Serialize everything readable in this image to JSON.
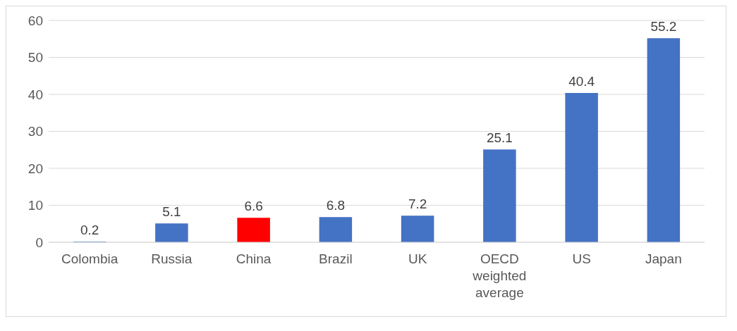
{
  "chart_data": {
    "type": "bar",
    "categories": [
      "Colombia",
      "Russia",
      "China",
      "Brazil",
      "UK",
      "OECD weighted average",
      "US",
      "Japan"
    ],
    "values": [
      0.2,
      5.1,
      6.6,
      6.8,
      7.2,
      25.1,
      40.4,
      55.2
    ],
    "colors": [
      "#4472c4",
      "#4472c4",
      "#ff0000",
      "#4472c4",
      "#4472c4",
      "#4472c4",
      "#4472c4",
      "#4472c4"
    ],
    "ylim": [
      0,
      60
    ],
    "yticks": [
      0,
      10,
      20,
      30,
      40,
      50,
      60
    ],
    "grid": "y",
    "data_labels": true
  }
}
